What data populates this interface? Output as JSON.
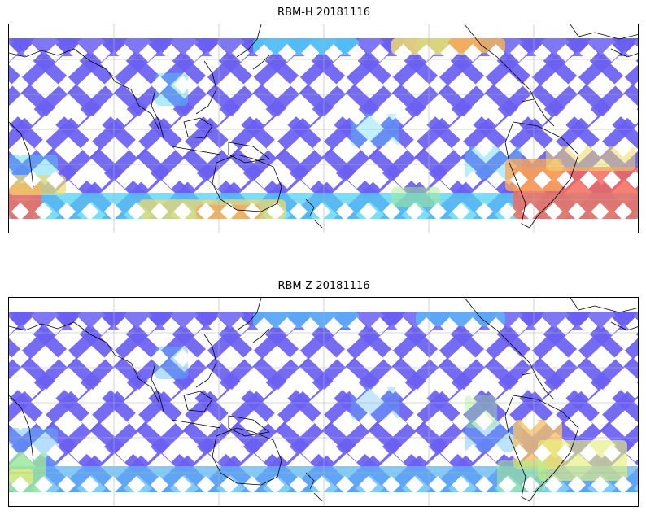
{
  "panels": [
    {
      "title": "RBM-H 20181116",
      "palette": {
        "base": "#6a5ff2",
        "mid": "#4fd3f5",
        "warm": "#f0d96a",
        "hot": "#f46a5a",
        "orange": "#f7a65b",
        "green": "#a6f08a"
      }
    },
    {
      "title": "RBM-Z 20181116",
      "palette": {
        "base": "#6a5ff2",
        "mid": "#5ab8f7",
        "warm": "#e7f07a",
        "hot": "#f7b45b",
        "orange": "#f5c26a",
        "green": "#a6f08a"
      }
    }
  ],
  "map": {
    "projection": "PlateCarree",
    "central_longitude": 180,
    "coastlines": true,
    "gridlines": true
  }
}
